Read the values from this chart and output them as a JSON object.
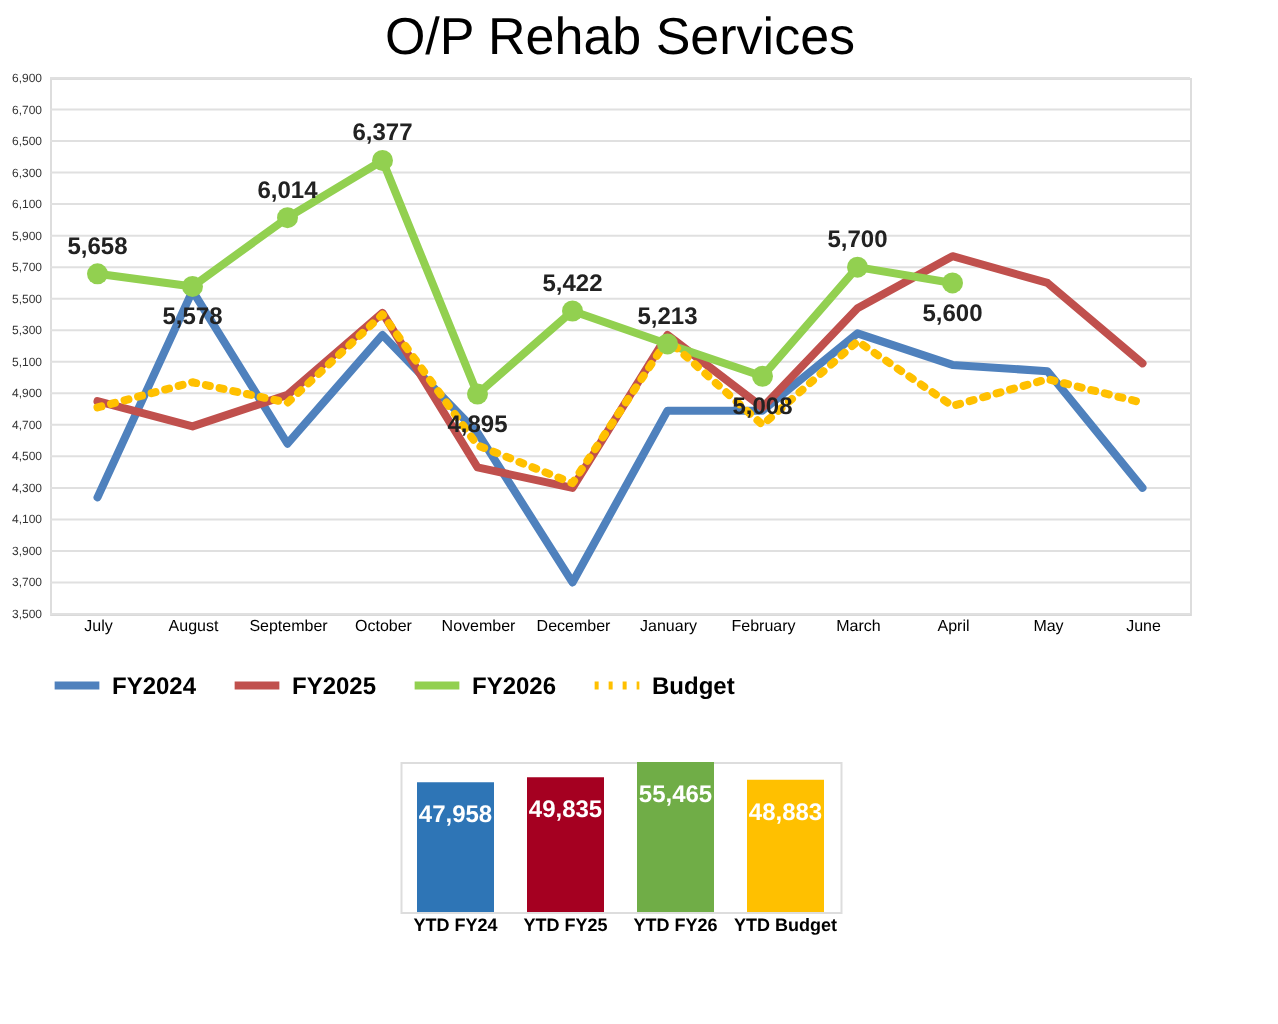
{
  "chart_data": [
    {
      "type": "line",
      "title": "O/P Rehab Services",
      "categories": [
        "July",
        "August",
        "September",
        "October",
        "November",
        "December",
        "January",
        "February",
        "March",
        "April",
        "May",
        "June"
      ],
      "series": [
        {
          "name": "FY2024",
          "color": "#4f81bd",
          "line_style": "solid",
          "marker": "none",
          "values": [
            4240,
            5550,
            4580,
            5270,
            4650,
            3700,
            4790,
            4790,
            5280,
            5080,
            5040,
            4300
          ]
        },
        {
          "name": "FY2025",
          "color": "#c0504d",
          "line_style": "solid",
          "marker": "none",
          "values": [
            4850,
            4690,
            4890,
            5410,
            4430,
            4300,
            5270,
            4810,
            5440,
            5770,
            5600,
            5090
          ]
        },
        {
          "name": "FY2026",
          "color": "#92d050",
          "line_style": "solid",
          "marker": "circle",
          "values": [
            5658,
            5578,
            6014,
            6377,
            4895,
            5422,
            5213,
            5008,
            5700,
            5600,
            null,
            null
          ],
          "value_labels": [
            "5,658",
            "5,578",
            "6,014",
            "6,377",
            "4,895",
            "5,422",
            "5,213",
            "5,008",
            "5,700",
            "5,600",
            null,
            null
          ]
        },
        {
          "name": "Budget",
          "color": "#ffc000",
          "line_style": "dotted",
          "marker": "none",
          "values": [
            4810,
            4970,
            4840,
            5400,
            4570,
            4330,
            5240,
            4700,
            5230,
            4820,
            4990,
            4840
          ]
        }
      ],
      "ylim": [
        3500,
        6900
      ],
      "yticks": [
        {
          "value": 3500,
          "label": "3,500"
        },
        {
          "value": 3700,
          "label": "3,700"
        },
        {
          "value": 3900,
          "label": "3,900"
        },
        {
          "value": 4100,
          "label": "4,100"
        },
        {
          "value": 4300,
          "label": "4,300"
        },
        {
          "value": 4500,
          "label": "4,500"
        },
        {
          "value": 4700,
          "label": "4,700"
        },
        {
          "value": 4900,
          "label": "4,900"
        },
        {
          "value": 5100,
          "label": "5,100"
        },
        {
          "value": 5300,
          "label": "5,300"
        },
        {
          "value": 5500,
          "label": "5,500"
        },
        {
          "value": 5700,
          "label": "5,700"
        },
        {
          "value": 5900,
          "label": "5,900"
        },
        {
          "value": 6100,
          "label": "6,100"
        },
        {
          "value": 6300,
          "label": "6,300"
        },
        {
          "value": 6500,
          "label": "6,500"
        },
        {
          "value": 6700,
          "label": "6,700"
        },
        {
          "value": 6900,
          "label": "6,900"
        }
      ],
      "grid": "y",
      "legend": "bottom left"
    },
    {
      "type": "bar",
      "categories": [
        "YTD FY24",
        "YTD FY25",
        "YTD FY26",
        "YTD Budget"
      ],
      "values": [
        47958,
        49835,
        55465,
        48883
      ],
      "colors": [
        "#2e75b6",
        "#a50021",
        "#70ad47",
        "#ffc000"
      ],
      "value_labels": [
        "47,958",
        "49,835",
        "55,465",
        "48,883"
      ],
      "tick_labels": "x"
    }
  ]
}
